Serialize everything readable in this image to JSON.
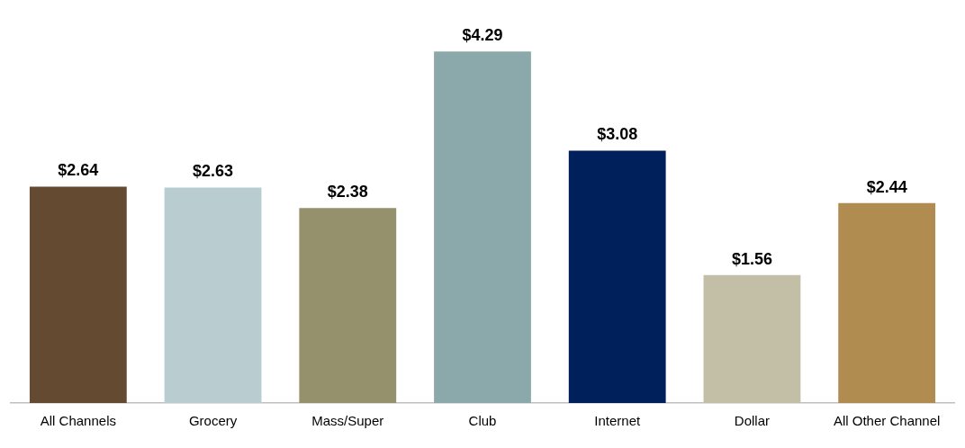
{
  "chart_data": {
    "type": "bar",
    "categories": [
      "All Channels",
      "Grocery",
      "Mass/Super",
      "Club",
      "Internet",
      "Dollar",
      "All Other Channel"
    ],
    "values": [
      2.64,
      2.63,
      2.38,
      4.29,
      3.08,
      1.56,
      2.44
    ],
    "colors": [
      "#634a31",
      "#b9cdd0",
      "#96916d",
      "#8ba9aa",
      "#00205c",
      "#c2bfa6",
      "#b08c50"
    ],
    "value_labels": [
      "$2.64",
      "$2.63",
      "$2.38",
      "$4.29",
      "$3.08",
      "$1.56",
      "$2.44"
    ],
    "grid": false,
    "legend": false
  }
}
